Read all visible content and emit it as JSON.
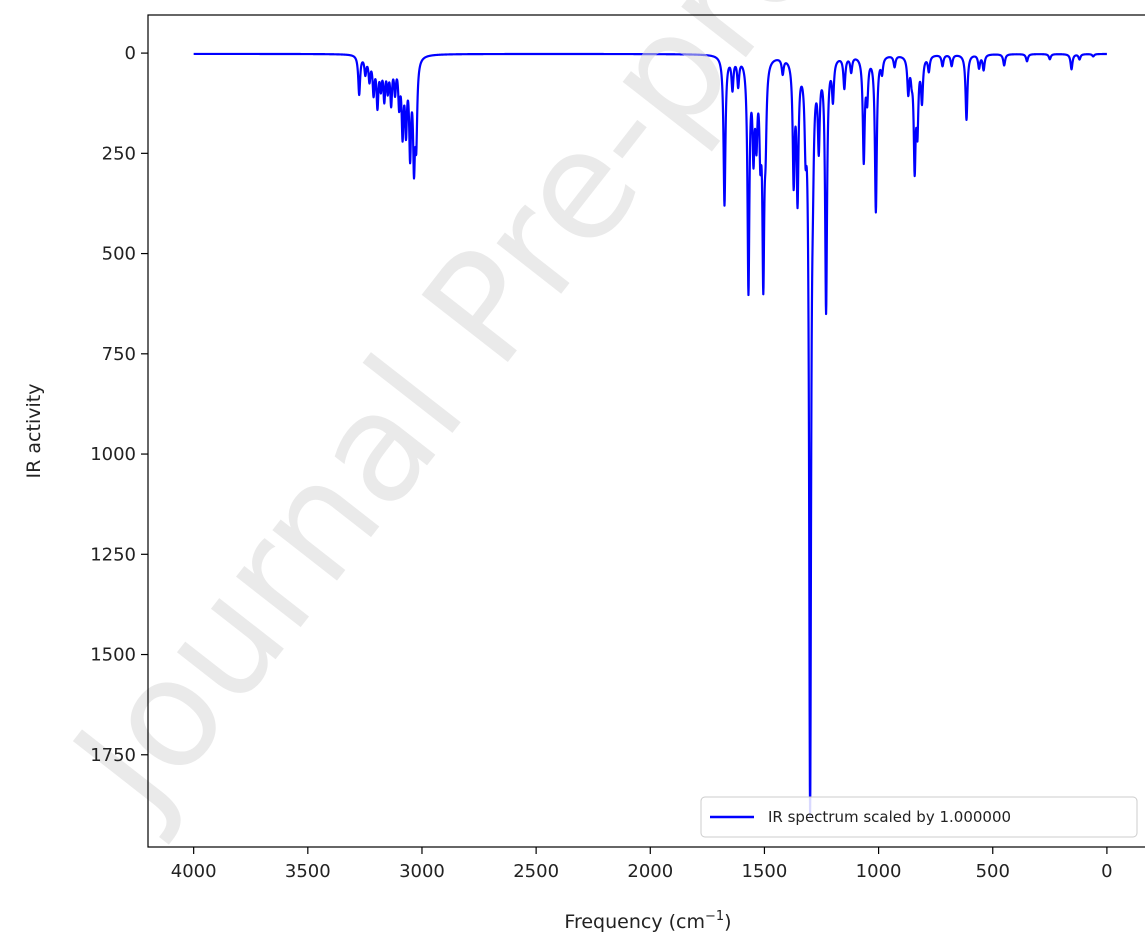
{
  "watermark": "Journal Pre-proof",
  "chart_data": {
    "type": "line",
    "title": "",
    "xlabel": "Frequency (cm",
    "xlabel_sup": "−1",
    "xlabel_end": ")",
    "ylabel": "IR activity",
    "xlim": [
      4200,
      -180
    ],
    "ylim": [
      1980,
      -95
    ],
    "y_inverted": true,
    "x_inverted": true,
    "grid": false,
    "x_ticks": [
      4000,
      3500,
      3000,
      2500,
      2000,
      1500,
      1000,
      500,
      0
    ],
    "y_ticks": [
      0,
      250,
      500,
      750,
      1000,
      1250,
      1500,
      1750
    ],
    "legend": {
      "position": "lower-right"
    },
    "line_color": "#0000ff",
    "series": [
      {
        "name": "IR spectrum scaled by 1.000000",
        "baseline": 2,
        "peaks": [
          [
            3275,
            100
          ],
          [
            3248,
            45
          ],
          [
            3230,
            60
          ],
          [
            3212,
            90
          ],
          [
            3195,
            120
          ],
          [
            3180,
            70
          ],
          [
            3165,
            100
          ],
          [
            3150,
            75
          ],
          [
            3135,
            110
          ],
          [
            3118,
            80
          ],
          [
            3100,
            110
          ],
          [
            3085,
            180
          ],
          [
            3070,
            170
          ],
          [
            3052,
            230
          ],
          [
            3035,
            250
          ],
          [
            3025,
            190
          ],
          [
            1675,
            375
          ],
          [
            1640,
            80
          ],
          [
            1615,
            70
          ],
          [
            1570,
            580
          ],
          [
            1548,
            220
          ],
          [
            1535,
            180
          ],
          [
            1518,
            200
          ],
          [
            1505,
            530
          ],
          [
            1495,
            160
          ],
          [
            1420,
            40
          ],
          [
            1372,
            300
          ],
          [
            1355,
            340
          ],
          [
            1320,
            160
          ],
          [
            1300,
            1860
          ],
          [
            1288,
            140
          ],
          [
            1262,
            200
          ],
          [
            1230,
            630
          ],
          [
            1200,
            100
          ],
          [
            1150,
            80
          ],
          [
            1120,
            40
          ],
          [
            1065,
            260
          ],
          [
            1050,
            100
          ],
          [
            1012,
            390
          ],
          [
            985,
            40
          ],
          [
            930,
            30
          ],
          [
            870,
            90
          ],
          [
            855,
            40
          ],
          [
            842,
            270
          ],
          [
            830,
            170
          ],
          [
            810,
            110
          ],
          [
            780,
            40
          ],
          [
            720,
            30
          ],
          [
            680,
            30
          ],
          [
            615,
            165
          ],
          [
            560,
            35
          ],
          [
            540,
            40
          ],
          [
            450,
            30
          ],
          [
            350,
            20
          ],
          [
            250,
            15
          ],
          [
            155,
            40
          ],
          [
            120,
            15
          ],
          [
            60,
            8
          ]
        ]
      }
    ]
  }
}
